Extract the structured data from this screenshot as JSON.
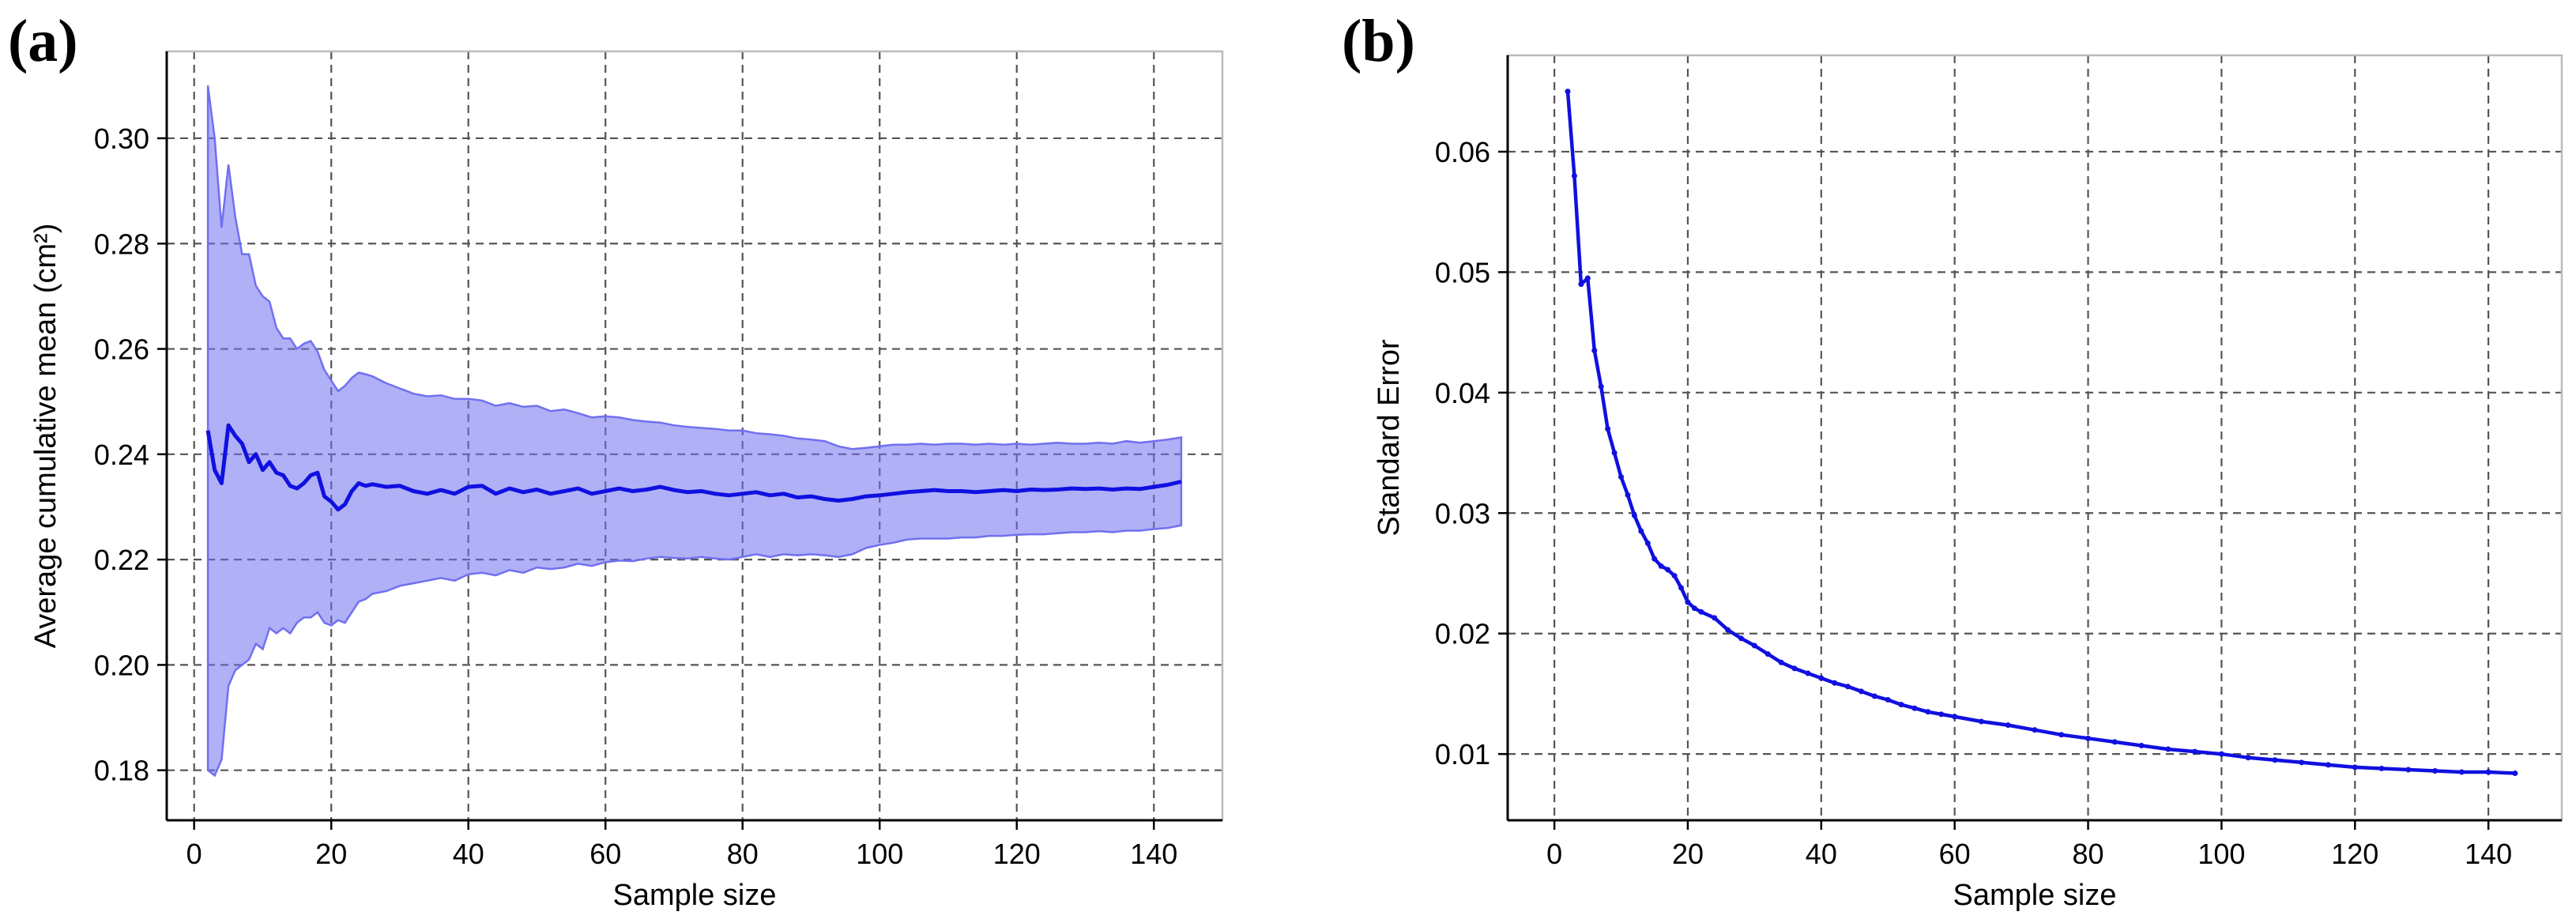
{
  "panels": [
    {
      "label": "(a)"
    },
    {
      "label": "(b)"
    }
  ],
  "chart_data": [
    {
      "type": "line",
      "panel": "(a)",
      "xlabel": "Sample size",
      "ylabel": "Average cumulative mean (cm²)",
      "xlim": [
        -4,
        150
      ],
      "ylim": [
        0.1705,
        0.3165
      ],
      "xticks": [
        0,
        20,
        40,
        60,
        80,
        100,
        120,
        140
      ],
      "xtick_labels": [
        "0",
        "20",
        "40",
        "60",
        "80",
        "100",
        "120",
        "140"
      ],
      "yticks": [
        0.18,
        0.2,
        0.22,
        0.24,
        0.26,
        0.28,
        0.3
      ],
      "ytick_labels": [
        "0.18",
        "0.20",
        "0.22",
        "0.24",
        "0.26",
        "0.28",
        "0.30"
      ],
      "grid": true,
      "line_color": "#1010e0",
      "band_color": "#7070f0",
      "series": [
        {
          "x": [
            2,
            3,
            4,
            5,
            6,
            7,
            8,
            9,
            10,
            11,
            12,
            13,
            14,
            15,
            16,
            17,
            18,
            19,
            20,
            21,
            22,
            23,
            24,
            25,
            26,
            28,
            30,
            32,
            34,
            36,
            38,
            40,
            42,
            44,
            46,
            48,
            50,
            52,
            54,
            56,
            58,
            60,
            62,
            64,
            66,
            68,
            70,
            72,
            74,
            76,
            78,
            80,
            82,
            84,
            86,
            88,
            90,
            92,
            94,
            96,
            98,
            100,
            102,
            104,
            106,
            108,
            110,
            112,
            114,
            116,
            118,
            120,
            122,
            124,
            126,
            128,
            130,
            132,
            134,
            136,
            138,
            140,
            142,
            144
          ],
          "y": [
            0.2445,
            0.237,
            0.2345,
            0.2455,
            0.2435,
            0.242,
            0.2385,
            0.24,
            0.237,
            0.2385,
            0.2365,
            0.236,
            0.234,
            0.2335,
            0.2345,
            0.236,
            0.2365,
            0.232,
            0.231,
            0.2295,
            0.2305,
            0.233,
            0.2345,
            0.234,
            0.2343,
            0.2338,
            0.234,
            0.233,
            0.2325,
            0.2332,
            0.2325,
            0.2338,
            0.234,
            0.2325,
            0.2335,
            0.2328,
            0.2333,
            0.2325,
            0.233,
            0.2335,
            0.2325,
            0.233,
            0.2335,
            0.233,
            0.2333,
            0.2338,
            0.2332,
            0.2328,
            0.233,
            0.2325,
            0.2322,
            0.2325,
            0.2328,
            0.2322,
            0.2325,
            0.2318,
            0.232,
            0.2315,
            0.2312,
            0.2315,
            0.232,
            0.2322,
            0.2325,
            0.2328,
            0.233,
            0.2332,
            0.233,
            0.233,
            0.2328,
            0.233,
            0.2332,
            0.233,
            0.2333,
            0.2332,
            0.2333,
            0.2335,
            0.2334,
            0.2335,
            0.2333,
            0.2335,
            0.2334,
            0.2338,
            0.2342,
            0.2348
          ],
          "upper": [
            0.31,
            0.3,
            0.283,
            0.295,
            0.285,
            0.278,
            0.278,
            0.272,
            0.27,
            0.269,
            0.264,
            0.262,
            0.262,
            0.26,
            0.261,
            0.2615,
            0.2595,
            0.256,
            0.254,
            0.252,
            0.253,
            0.2545,
            0.2555,
            0.2552,
            0.2548,
            0.2535,
            0.2525,
            0.2515,
            0.251,
            0.2512,
            0.2505,
            0.2505,
            0.2502,
            0.2492,
            0.2497,
            0.249,
            0.2492,
            0.2482,
            0.2485,
            0.2478,
            0.247,
            0.2472,
            0.247,
            0.2465,
            0.2462,
            0.246,
            0.2455,
            0.2452,
            0.245,
            0.2448,
            0.2445,
            0.2445,
            0.244,
            0.2438,
            0.2435,
            0.243,
            0.2428,
            0.2425,
            0.2415,
            0.241,
            0.2412,
            0.2415,
            0.2418,
            0.2418,
            0.242,
            0.2418,
            0.242,
            0.242,
            0.2418,
            0.242,
            0.2418,
            0.242,
            0.2418,
            0.242,
            0.2422,
            0.242,
            0.242,
            0.2422,
            0.242,
            0.2425,
            0.2422,
            0.2425,
            0.2428,
            0.2432
          ],
          "lower": [
            0.18,
            0.179,
            0.182,
            0.196,
            0.199,
            0.2,
            0.201,
            0.204,
            0.203,
            0.207,
            0.206,
            0.207,
            0.206,
            0.208,
            0.209,
            0.209,
            0.21,
            0.208,
            0.2075,
            0.2085,
            0.208,
            0.21,
            0.212,
            0.2125,
            0.2135,
            0.214,
            0.215,
            0.2155,
            0.216,
            0.2165,
            0.216,
            0.2172,
            0.2175,
            0.217,
            0.218,
            0.2175,
            0.2185,
            0.2182,
            0.2185,
            0.2192,
            0.2188,
            0.2195,
            0.2198,
            0.2197,
            0.2202,
            0.2205,
            0.2203,
            0.2202,
            0.2205,
            0.2202,
            0.22,
            0.2205,
            0.221,
            0.2205,
            0.221,
            0.2208,
            0.221,
            0.2208,
            0.2205,
            0.221,
            0.2222,
            0.2228,
            0.2232,
            0.2238,
            0.224,
            0.224,
            0.224,
            0.2242,
            0.2242,
            0.2245,
            0.2245,
            0.2247,
            0.2248,
            0.2248,
            0.225,
            0.2252,
            0.2252,
            0.2254,
            0.2252,
            0.2255,
            0.2255,
            0.2258,
            0.226,
            0.2265
          ]
        }
      ]
    },
    {
      "type": "line",
      "panel": "(b)",
      "xlabel": "Sample size",
      "ylabel": "Standard Error",
      "xlim": [
        -7,
        151
      ],
      "ylim": [
        0.0045,
        0.068
      ],
      "xticks": [
        0,
        20,
        40,
        60,
        80,
        100,
        120,
        140
      ],
      "xtick_labels": [
        "0",
        "20",
        "40",
        "60",
        "80",
        "100",
        "120",
        "140"
      ],
      "yticks": [
        0.01,
        0.02,
        0.03,
        0.04,
        0.05,
        0.06
      ],
      "ytick_labels": [
        "0.01",
        "0.02",
        "0.03",
        "0.04",
        "0.05",
        "0.06"
      ],
      "grid": true,
      "line_color": "#1010e0",
      "series": [
        {
          "x": [
            2,
            3,
            4,
            5,
            6,
            7,
            8,
            9,
            10,
            11,
            12,
            13,
            14,
            15,
            16,
            17,
            18,
            19,
            20,
            21,
            22,
            24,
            26,
            28,
            30,
            32,
            34,
            36,
            38,
            40,
            42,
            44,
            46,
            48,
            50,
            52,
            54,
            56,
            58,
            60,
            64,
            68,
            72,
            76,
            80,
            84,
            88,
            92,
            96,
            100,
            104,
            108,
            112,
            116,
            120,
            124,
            128,
            132,
            136,
            140,
            144
          ],
          "y": [
            0.065,
            0.058,
            0.049,
            0.0495,
            0.0435,
            0.0405,
            0.037,
            0.035,
            0.033,
            0.0315,
            0.0298,
            0.0285,
            0.0275,
            0.0262,
            0.0256,
            0.0253,
            0.0248,
            0.0238,
            0.0226,
            0.0221,
            0.0218,
            0.0213,
            0.0203,
            0.0196,
            0.019,
            0.0183,
            0.0176,
            0.0171,
            0.0167,
            0.0163,
            0.0159,
            0.0156,
            0.0152,
            0.0148,
            0.0145,
            0.0141,
            0.0138,
            0.0135,
            0.0133,
            0.0131,
            0.0127,
            0.0124,
            0.012,
            0.0116,
            0.0113,
            0.011,
            0.0107,
            0.0104,
            0.0102,
            0.01,
            0.0097,
            0.0095,
            0.0093,
            0.0091,
            0.0089,
            0.0088,
            0.0087,
            0.0086,
            0.0085,
            0.0085,
            0.0084
          ]
        }
      ]
    }
  ]
}
